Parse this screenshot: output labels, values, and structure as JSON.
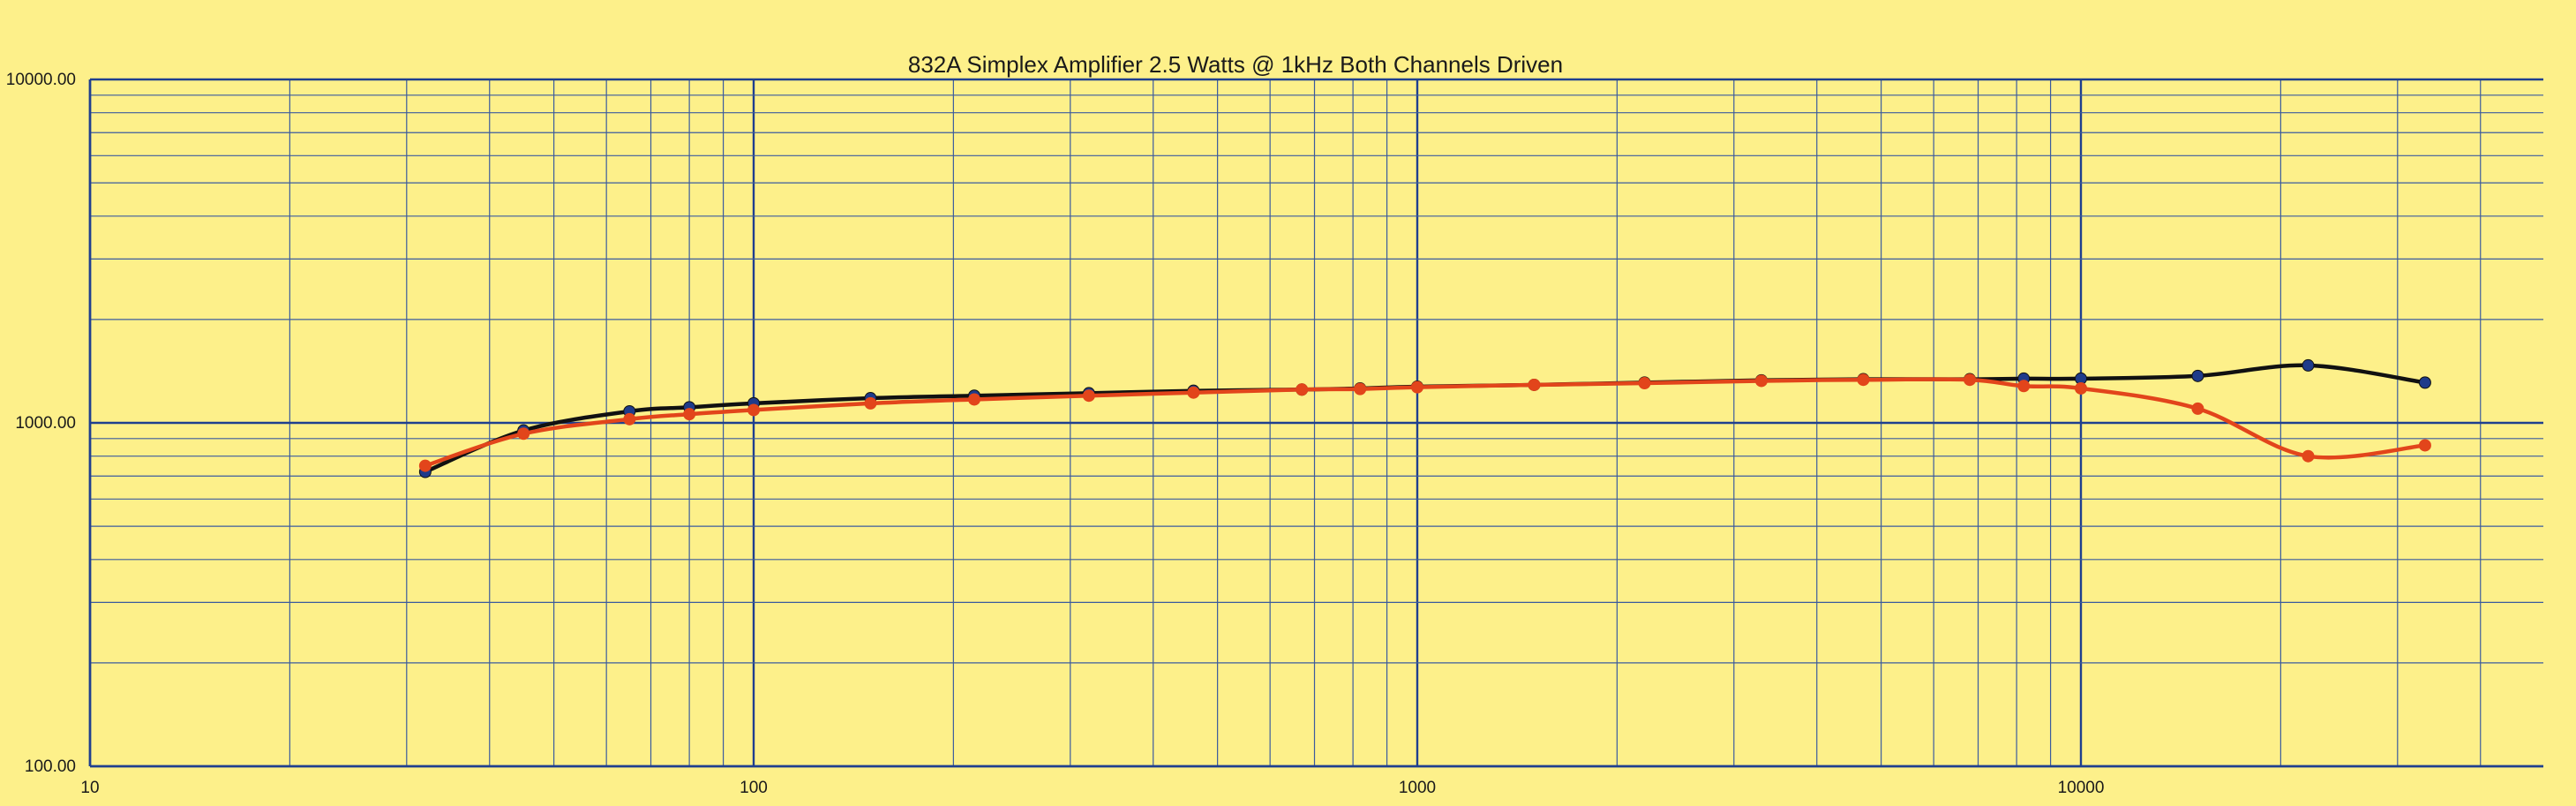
{
  "chart_data": {
    "type": "line",
    "title": "832A Simplex Amplifier 2.5 Watts @ 1kHz Both Channels Driven",
    "xlabel": "",
    "ylabel": "",
    "x_scale": "log",
    "y_scale": "log",
    "xlim": [
      10,
      40000
    ],
    "ylim": [
      100,
      10000
    ],
    "grid": true,
    "legend": "none",
    "x_tick_labels": [
      "10",
      "100",
      "1000",
      "10000"
    ],
    "y_tick_labels": [
      "10000.00",
      "1000.00",
      "100.00"
    ],
    "series": [
      {
        "color": "#111111",
        "marker_color": "#1f3b8a",
        "points": [
          [
            32,
            720
          ],
          [
            45,
            950
          ],
          [
            65,
            1080
          ],
          [
            80,
            1110
          ],
          [
            100,
            1140
          ],
          [
            150,
            1180
          ],
          [
            215,
            1200
          ],
          [
            320,
            1220
          ],
          [
            460,
            1240
          ],
          [
            670,
            1250
          ],
          [
            820,
            1260
          ],
          [
            1000,
            1275
          ],
          [
            1500,
            1290
          ],
          [
            2200,
            1310
          ],
          [
            3300,
            1330
          ],
          [
            4700,
            1340
          ],
          [
            6800,
            1340
          ],
          [
            8200,
            1345
          ],
          [
            10000,
            1345
          ],
          [
            15000,
            1370
          ],
          [
            22000,
            1470
          ],
          [
            33000,
            1310
          ]
        ]
      },
      {
        "color": "#e2451b",
        "marker_color": "#e2451b",
        "points": [
          [
            32,
            750
          ],
          [
            45,
            930
          ],
          [
            65,
            1025
          ],
          [
            80,
            1060
          ],
          [
            100,
            1090
          ],
          [
            150,
            1140
          ],
          [
            215,
            1170
          ],
          [
            320,
            1200
          ],
          [
            460,
            1225
          ],
          [
            670,
            1250
          ],
          [
            820,
            1255
          ],
          [
            1000,
            1270
          ],
          [
            1500,
            1290
          ],
          [
            2200,
            1305
          ],
          [
            3300,
            1325
          ],
          [
            4700,
            1335
          ],
          [
            6800,
            1335
          ],
          [
            8200,
            1280
          ],
          [
            10000,
            1260
          ],
          [
            15000,
            1100
          ],
          [
            22000,
            800
          ],
          [
            33000,
            860
          ]
        ]
      }
    ],
    "colors": {
      "background": "#fdf08a",
      "grid_minor": "#3b5b9e",
      "grid_major": "#1f3f8f",
      "axis": "#1f3f8f"
    }
  }
}
